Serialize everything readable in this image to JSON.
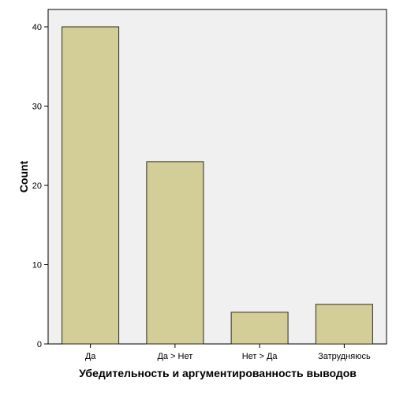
{
  "chart_data": {
    "type": "bar",
    "categories": [
      "Да",
      "Да > Нет",
      "Нет > Да",
      "Затрудняюсь"
    ],
    "values": [
      40,
      23,
      4,
      5
    ],
    "xlabel": "Убедительность и аргументированность выводов",
    "ylabel": "Count",
    "ylim": [
      0,
      40
    ],
    "yticks": [
      0,
      10,
      20,
      30,
      40
    ],
    "grid": false,
    "colors": {
      "bar_fill": "#d3ce97",
      "bar_stroke": "#2a2a1e",
      "plot_background": "#f0f0f0",
      "axis": "#000000"
    }
  }
}
